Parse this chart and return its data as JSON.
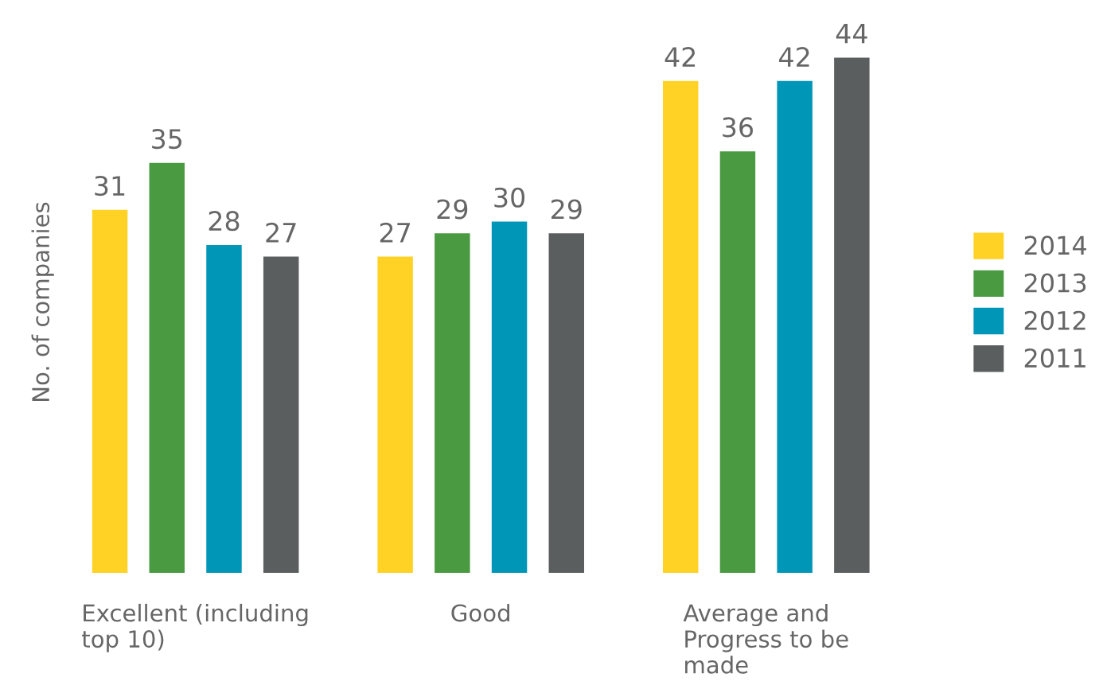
{
  "chart_data": {
    "type": "bar",
    "categories": [
      "Excellent (including\ntop 10)",
      "Good",
      "Average and\nProgress to be\nmade"
    ],
    "ylabel": "No. of companies",
    "series": [
      {
        "name": "2014",
        "color": "#ffd225",
        "values": [
          31,
          27,
          42
        ]
      },
      {
        "name": "2013",
        "color": "#4a9a42",
        "values": [
          35,
          29,
          36
        ]
      },
      {
        "name": "2012",
        "color": "#0096b8",
        "values": [
          28,
          30,
          42
        ]
      },
      {
        "name": "2011",
        "color": "#5a5e5f",
        "values": [
          27,
          29,
          44
        ]
      }
    ],
    "data_labels": true,
    "legend": "right",
    "grid": false
  }
}
